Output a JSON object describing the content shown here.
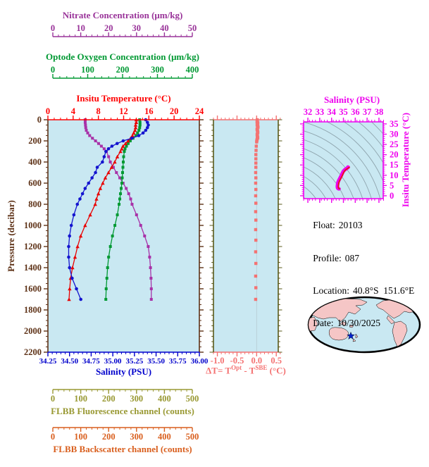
{
  "info": {
    "lines": [
      {
        "label": "Float:",
        "value": "20103"
      },
      {
        "label": "Profile:",
        "value": "087"
      },
      {
        "label": "Location:",
        "value": "40.8°S  151.6°E"
      },
      {
        "label": "Date:",
        "value": "10/30/2025"
      }
    ]
  },
  "map": {
    "ocean_color": "#C9E8F2",
    "land_color": "#F5C6C6",
    "outline_color": "#000000",
    "marker": "star",
    "marker_color": "#0022CC",
    "marker_note": "float position southeast of Australia"
  },
  "chart_data": [
    {
      "type": "line",
      "title": "Multi-variable vertical profile plot",
      "y_axis": {
        "label": "Pressure (decibar)",
        "min": 0,
        "max": 2200,
        "major_ticks": [
          0,
          200,
          400,
          600,
          800,
          1000,
          1200,
          1400,
          1600,
          1800,
          2000,
          2200
        ],
        "minor_step": 50,
        "color": "#5E3217"
      },
      "x_axes": [
        {
          "id": "nitrate",
          "label": "Nitrate Concentration (μm/kg)",
          "min": 0,
          "max": 50,
          "major_ticks": [
            0,
            10,
            20,
            30,
            40,
            50
          ],
          "minor_step": 2,
          "color": "#993399",
          "position": "top-outer"
        },
        {
          "id": "oxygen",
          "label": "Optode Oxygen Concentration (μm/kg)",
          "min": 0,
          "max": 400,
          "major_ticks": [
            0,
            100,
            200,
            300,
            400
          ],
          "minor_step": 20,
          "color": "#009933",
          "position": "top-middle"
        },
        {
          "id": "temperature",
          "label": "Insitu Temperature (°C)",
          "min": 0,
          "max": 24,
          "major_ticks": [
            0,
            4,
            8,
            12,
            16,
            20,
            24
          ],
          "minor_step": 1,
          "color": "#FF0000",
          "position": "plot-top"
        },
        {
          "id": "salinity",
          "label": "Salinity (PSU)",
          "min": 34.25,
          "max": 36.0,
          "major_ticks": [
            "34.25",
            "34.50",
            "34.75",
            "35.00",
            "35.25",
            "35.50",
            "35.75",
            "36.00"
          ],
          "minor_step": 0.05,
          "color": "#0000CC",
          "position": "plot-bottom"
        },
        {
          "id": "fluorescence",
          "label": "FLBB Fluorescence channel (counts)",
          "min": 0,
          "max": 500,
          "major_ticks": [
            0,
            100,
            200,
            300,
            400,
            500
          ],
          "minor_step": 20,
          "color": "#999933",
          "position": "bottom-middle"
        },
        {
          "id": "backscatter",
          "label": "FLBB Backscatter channel (counts)",
          "min": 0,
          "max": 500,
          "major_ticks": [
            0,
            100,
            200,
            300,
            400,
            500
          ],
          "minor_step": 20,
          "color": "#D95F1E",
          "position": "bottom-outer"
        }
      ],
      "pressure": [
        0,
        25,
        50,
        75,
        100,
        125,
        150,
        175,
        200,
        225,
        250,
        275,
        300,
        350,
        400,
        450,
        500,
        550,
        600,
        650,
        700,
        750,
        800,
        900,
        1000,
        1100,
        1200,
        1300,
        1400,
        1500,
        1600,
        1700
      ],
      "series": [
        {
          "name": "Nitrate",
          "axis": "nitrate",
          "color": "#A832A8",
          "marker": "square",
          "values": [
            11.6,
            11.6,
            11.7,
            11.8,
            12.0,
            12.5,
            13.2,
            14.2,
            15.3,
            16.4,
            17.4,
            18.4,
            19.2,
            20.0,
            20.6,
            21.7,
            22.8,
            24.0,
            25.2,
            26.3,
            27.2,
            27.9,
            28.4,
            30.0,
            31.5,
            32.9,
            34.2,
            34.7,
            35.0,
            35.2,
            35.3,
            35.3
          ]
        },
        {
          "name": "Optode Oxygen",
          "axis": "oxygen",
          "color": "#009933",
          "marker": "square",
          "values": [
            249,
            250,
            250,
            249,
            247,
            243,
            238,
            230,
            222,
            216,
            211,
            207,
            205,
            203,
            202,
            201,
            200,
            199,
            198,
            196,
            194,
            192,
            190,
            185,
            178,
            171,
            165,
            160,
            157,
            155,
            153,
            152
          ]
        },
        {
          "name": "Insitu Temperature",
          "axis": "temperature",
          "color": "#E80000",
          "marker": "triangle",
          "values": [
            14.0,
            14.0,
            13.9,
            13.9,
            13.8,
            13.6,
            13.4,
            13.1,
            12.7,
            12.3,
            11.9,
            11.7,
            11.5,
            11.0,
            10.6,
            10.1,
            9.6,
            9.1,
            8.7,
            8.3,
            8.0,
            7.7,
            7.5,
            6.7,
            5.9,
            5.2,
            4.7,
            4.3,
            3.9,
            3.6,
            3.45,
            3.35
          ]
        },
        {
          "name": "Salinity",
          "axis": "salinity",
          "color": "#1414CF",
          "marker": "circle",
          "values": [
            35.38,
            35.4,
            35.41,
            35.4,
            35.38,
            35.35,
            35.3,
            35.22,
            35.12,
            35.05,
            34.99,
            34.95,
            34.92,
            34.9,
            34.88,
            34.82,
            34.8,
            34.76,
            34.72,
            34.68,
            34.65,
            34.62,
            34.59,
            34.55,
            34.52,
            34.5,
            34.49,
            34.49,
            34.5,
            34.53,
            34.58,
            34.63
          ]
        }
      ]
    },
    {
      "type": "scatter",
      "title": "Optode minus SBE temperature difference vs pressure",
      "x_axis": {
        "label_parts": {
          "prefix": "ΔT= T",
          "sup1": "Opt",
          "mid": " - T",
          "sup2": "SBE",
          "suffix": " (°C)"
        },
        "min": -1.1,
        "max": 0.55,
        "major_ticks": [
          "-1.0",
          "-0.5",
          "0.0",
          "0.5"
        ],
        "minor_step": 0.1,
        "color": "#F47272"
      },
      "y_axis": {
        "min": 0,
        "max": 2200,
        "major_step": 200,
        "minor_step": 50,
        "color": "#5A5A1A"
      },
      "gridline_x": 0.0,
      "point_color": "#F47272",
      "points": [
        [
          0,
          0.015
        ],
        [
          10,
          0.02
        ],
        [
          20,
          0.01
        ],
        [
          30,
          0.03
        ],
        [
          40,
          0.02
        ],
        [
          50,
          0.012
        ],
        [
          60,
          0.028
        ],
        [
          70,
          0.035
        ],
        [
          80,
          0.022
        ],
        [
          90,
          0.01
        ],
        [
          100,
          0.018
        ],
        [
          110,
          0.025
        ],
        [
          120,
          0.03
        ],
        [
          130,
          0.02
        ],
        [
          140,
          0.012
        ],
        [
          150,
          0.015
        ],
        [
          160,
          0.022
        ],
        [
          170,
          0.028
        ],
        [
          180,
          0.015
        ],
        [
          190,
          0.008
        ],
        [
          200,
          0.004
        ],
        [
          210,
          0.0
        ],
        [
          250,
          -0.01
        ],
        [
          290,
          -0.015
        ],
        [
          330,
          -0.02
        ],
        [
          370,
          -0.02
        ],
        [
          410,
          -0.02
        ],
        [
          450,
          -0.02
        ],
        [
          500,
          -0.025
        ],
        [
          550,
          -0.02
        ],
        [
          600,
          -0.025
        ],
        [
          660,
          -0.02
        ],
        [
          720,
          -0.025
        ],
        [
          790,
          -0.02
        ],
        [
          870,
          -0.025
        ],
        [
          950,
          -0.02
        ],
        [
          1040,
          -0.025
        ],
        [
          1140,
          -0.02
        ],
        [
          1250,
          -0.025
        ],
        [
          1360,
          -0.02
        ],
        [
          1480,
          -0.025
        ],
        [
          1590,
          -0.02
        ],
        [
          1700,
          -0.025
        ]
      ]
    },
    {
      "type": "line",
      "title": "Temperature-Salinity diagram with density contours",
      "x_axis": {
        "label": "Salinity (PSU)",
        "min": 31.64,
        "max": 38.36,
        "major_ticks": [
          32,
          33,
          34,
          35,
          36,
          37,
          38
        ],
        "minor_step": 0.25,
        "color": "#EE00EE"
      },
      "y_axis": {
        "label": "Insitu Temperature (°C)",
        "min": -1.4,
        "max": 36.0,
        "major_ticks": [
          0,
          5,
          10,
          15,
          20,
          25,
          30,
          35
        ],
        "minor_step": 1,
        "color": "#EE00EE"
      },
      "curve_color": "#EE00EE",
      "curve_core_color": "#E81414",
      "contour_color": "#8FA5AE",
      "curve": [
        [
          35.38,
          14.0
        ],
        [
          35.41,
          13.9
        ],
        [
          35.3,
          13.4
        ],
        [
          35.12,
          12.7
        ],
        [
          34.99,
          11.9
        ],
        [
          34.92,
          11.1
        ],
        [
          34.88,
          10.6
        ],
        [
          34.8,
          9.6
        ],
        [
          34.72,
          8.7
        ],
        [
          34.62,
          7.6
        ],
        [
          34.55,
          6.7
        ],
        [
          34.52,
          5.9
        ],
        [
          34.5,
          5.2
        ],
        [
          34.49,
          4.7
        ],
        [
          34.49,
          4.3
        ],
        [
          34.5,
          3.9
        ],
        [
          34.53,
          3.6
        ],
        [
          34.58,
          3.45
        ],
        [
          34.63,
          3.35
        ]
      ]
    }
  ]
}
